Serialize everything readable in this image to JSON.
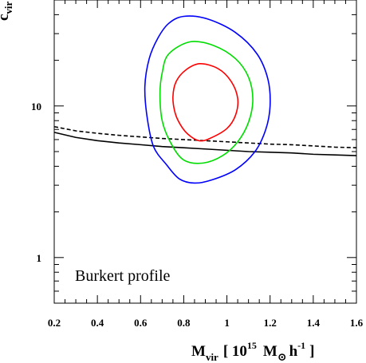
{
  "chart_data": {
    "type": "line",
    "title": "",
    "x_axis": {
      "label_main": "M",
      "label_sub": "vir",
      "label_bracket_open": "[ 10",
      "label_exp": "15",
      "label_unit": "M",
      "label_sun": "⊙",
      "label_h": "h",
      "label_hexp": "-1",
      "label_bracket_close": "]",
      "range": [
        0.2,
        1.6
      ],
      "scale": "linear",
      "ticks": [
        0.2,
        0.4,
        0.6,
        0.8,
        1.0,
        1.2,
        1.4,
        1.6
      ],
      "tick_labels": [
        "0.2",
        "0.4",
        "0.6",
        "0.8",
        "1",
        "1.2",
        "1.4",
        "1.6"
      ]
    },
    "y_axis": {
      "label_main": "c",
      "label_sub": "vir",
      "range": [
        0.5,
        50
      ],
      "scale": "log",
      "ticks": [
        1,
        10
      ],
      "tick_labels": [
        "1",
        "10"
      ]
    },
    "grid": false,
    "annotation": "Burkert profile",
    "series": [
      {
        "kind": "line",
        "style": "solid",
        "color": "#000000",
        "points": [
          [
            0.2,
            6.7
          ],
          [
            0.3,
            6.2
          ],
          [
            0.4,
            5.9
          ],
          [
            0.5,
            5.7
          ],
          [
            0.6,
            5.55
          ],
          [
            0.7,
            5.4
          ],
          [
            0.8,
            5.3
          ],
          [
            0.9,
            5.2
          ],
          [
            1.0,
            5.1
          ],
          [
            1.1,
            5.0
          ],
          [
            1.2,
            4.95
          ],
          [
            1.3,
            4.9
          ],
          [
            1.4,
            4.8
          ],
          [
            1.5,
            4.75
          ],
          [
            1.6,
            4.7
          ]
        ]
      },
      {
        "kind": "line",
        "style": "dashed",
        "color": "#000000",
        "points": [
          [
            0.2,
            7.3
          ],
          [
            0.3,
            6.85
          ],
          [
            0.4,
            6.6
          ],
          [
            0.5,
            6.4
          ],
          [
            0.6,
            6.25
          ],
          [
            0.7,
            6.1
          ],
          [
            0.8,
            6.0
          ],
          [
            0.9,
            5.9
          ],
          [
            1.0,
            5.8
          ],
          [
            1.1,
            5.7
          ],
          [
            1.2,
            5.6
          ],
          [
            1.3,
            5.55
          ],
          [
            1.4,
            5.45
          ],
          [
            1.5,
            5.35
          ],
          [
            1.6,
            5.3
          ]
        ]
      },
      {
        "kind": "contour",
        "color": "#ff0000",
        "points": [
          [
            0.875,
            19.0
          ],
          [
            0.96,
            17.6
          ],
          [
            1.02,
            14.5
          ],
          [
            1.05,
            11.2
          ],
          [
            1.04,
            8.7
          ],
          [
            1.0,
            7.1
          ],
          [
            0.92,
            6.1
          ],
          [
            0.87,
            5.9
          ],
          [
            0.82,
            6.5
          ],
          [
            0.785,
            7.5
          ],
          [
            0.76,
            9.0
          ],
          [
            0.75,
            11.5
          ],
          [
            0.765,
            14.5
          ],
          [
            0.81,
            17.3
          ]
        ]
      },
      {
        "kind": "contour",
        "color": "#00dd00",
        "points": [
          [
            0.83,
            26.5
          ],
          [
            0.94,
            25.0
          ],
          [
            1.04,
            20.5
          ],
          [
            1.1,
            15.5
          ],
          [
            1.12,
            11.0
          ],
          [
            1.1,
            7.8
          ],
          [
            1.05,
            5.8
          ],
          [
            0.98,
            4.7
          ],
          [
            0.89,
            4.2
          ],
          [
            0.8,
            4.4
          ],
          [
            0.74,
            5.7
          ],
          [
            0.7,
            8.0
          ],
          [
            0.69,
            12.0
          ],
          [
            0.7,
            16.5
          ],
          [
            0.73,
            22.0
          ]
        ]
      },
      {
        "kind": "contour",
        "color": "#0000ff",
        "points": [
          [
            0.8,
            39.0
          ],
          [
            0.91,
            37.5
          ],
          [
            1.04,
            30.5
          ],
          [
            1.14,
            22.0
          ],
          [
            1.19,
            15.0
          ],
          [
            1.2,
            10.0
          ],
          [
            1.18,
            7.0
          ],
          [
            1.13,
            5.0
          ],
          [
            1.04,
            3.8
          ],
          [
            0.93,
            3.25
          ],
          [
            0.85,
            3.1
          ],
          [
            0.78,
            3.3
          ],
          [
            0.72,
            4.1
          ],
          [
            0.66,
            5.4
          ],
          [
            0.63,
            8.5
          ],
          [
            0.62,
            13.5
          ],
          [
            0.64,
            20.5
          ],
          [
            0.68,
            28.0
          ],
          [
            0.73,
            35.0
          ]
        ]
      }
    ]
  }
}
